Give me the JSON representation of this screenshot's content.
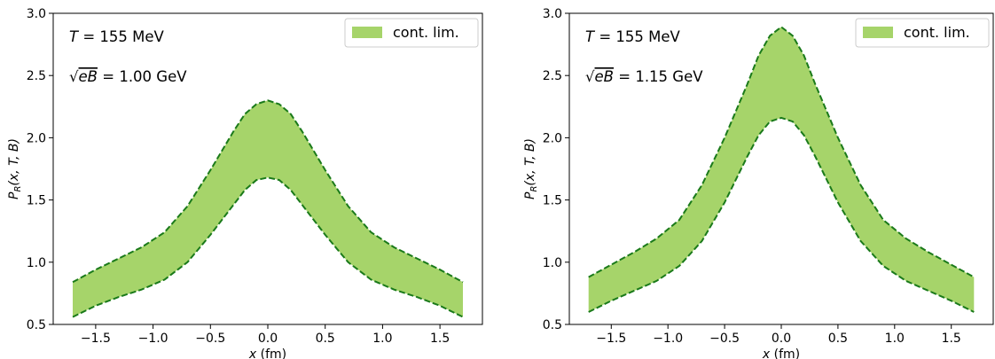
{
  "chart_data": [
    {
      "type": "area",
      "title": "",
      "annotations": {
        "temperature": "T = 155 MeV",
        "field": "√eB = 1.00 GeV"
      },
      "xlabel": "x (fm)",
      "ylabel": "P_R(x, T, B)",
      "xlim": [
        -1.87,
        1.87
      ],
      "ylim": [
        0.5,
        3.0
      ],
      "xticks": [
        "−1.5",
        "−1.0",
        "−0.5",
        "0.0",
        "0.5",
        "1.0",
        "1.5"
      ],
      "yticks": [
        "0.5",
        "1.0",
        "1.5",
        "2.0",
        "2.5",
        "3.0"
      ],
      "grid": false,
      "legend_position": "top-right",
      "series": [
        {
          "name": "cont. lim.",
          "color": "#a6d46a",
          "edge_color": "#1a7a1a",
          "x": [
            -1.7,
            -1.5,
            -1.3,
            -1.1,
            -0.9,
            -0.7,
            -0.5,
            -0.3,
            -0.2,
            -0.1,
            0.0,
            0.1,
            0.2,
            0.3,
            0.5,
            0.7,
            0.9,
            1.1,
            1.3,
            1.5,
            1.7
          ],
          "upper": [
            0.84,
            0.94,
            1.03,
            1.12,
            1.24,
            1.45,
            1.74,
            2.05,
            2.19,
            2.27,
            2.3,
            2.27,
            2.19,
            2.05,
            1.74,
            1.45,
            1.24,
            1.12,
            1.03,
            0.94,
            0.84
          ],
          "lower": [
            0.56,
            0.65,
            0.72,
            0.78,
            0.86,
            1.0,
            1.22,
            1.46,
            1.58,
            1.66,
            1.68,
            1.66,
            1.58,
            1.46,
            1.22,
            1.0,
            0.86,
            0.78,
            0.72,
            0.65,
            0.56
          ]
        }
      ]
    },
    {
      "type": "area",
      "title": "",
      "annotations": {
        "temperature": "T = 155 MeV",
        "field": "√eB = 1.15 GeV"
      },
      "xlabel": "x (fm)",
      "ylabel": "P_R(x, T, B)",
      "xlim": [
        -1.87,
        1.87
      ],
      "ylim": [
        0.5,
        3.0
      ],
      "xticks": [
        "−1.5",
        "−1.0",
        "−0.5",
        "0.0",
        "0.5",
        "1.0",
        "1.5"
      ],
      "yticks": [
        "0.5",
        "1.0",
        "1.5",
        "2.0",
        "2.5",
        "3.0"
      ],
      "grid": false,
      "legend_position": "top-right",
      "series": [
        {
          "name": "cont. lim.",
          "color": "#a6d46a",
          "edge_color": "#1a7a1a",
          "x": [
            -1.7,
            -1.5,
            -1.3,
            -1.1,
            -0.9,
            -0.7,
            -0.5,
            -0.3,
            -0.2,
            -0.1,
            0.0,
            0.1,
            0.2,
            0.3,
            0.5,
            0.7,
            0.9,
            1.1,
            1.3,
            1.5,
            1.7
          ],
          "upper": [
            0.88,
            0.98,
            1.08,
            1.19,
            1.34,
            1.62,
            2.0,
            2.43,
            2.66,
            2.82,
            2.89,
            2.82,
            2.66,
            2.43,
            2.0,
            1.62,
            1.34,
            1.19,
            1.08,
            0.98,
            0.88
          ],
          "lower": [
            0.6,
            0.69,
            0.77,
            0.85,
            0.97,
            1.17,
            1.48,
            1.85,
            2.02,
            2.13,
            2.16,
            2.13,
            2.02,
            1.85,
            1.48,
            1.17,
            0.97,
            0.85,
            0.77,
            0.69,
            0.6
          ]
        }
      ]
    }
  ]
}
